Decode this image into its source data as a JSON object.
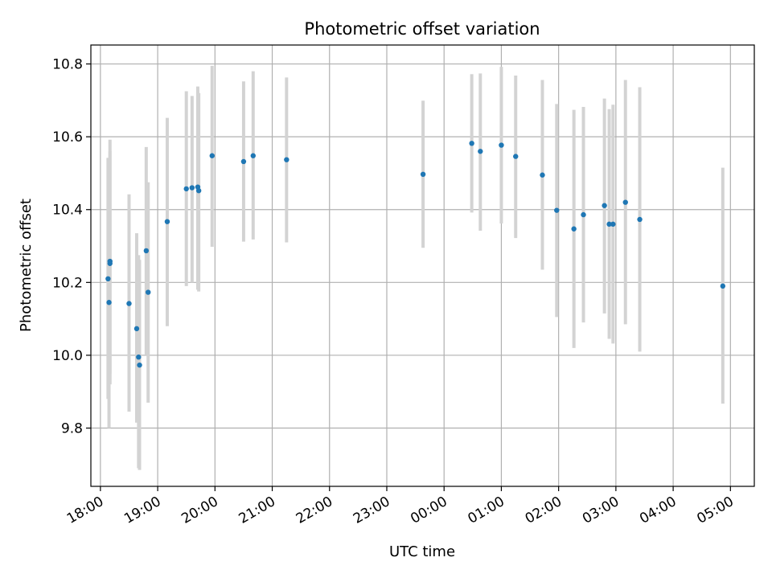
{
  "chart_data": {
    "type": "scatter",
    "title": "Photometric offset variation",
    "xlabel": "UTC time",
    "ylabel": "Photometric offset",
    "x_axis_kind": "time",
    "xlim": [
      "17:50",
      "05:25"
    ],
    "ylim": [
      9.64,
      10.852
    ],
    "grid": true,
    "x_ticks": [
      "18:00",
      "19:00",
      "20:00",
      "21:00",
      "22:00",
      "23:00",
      "00:00",
      "01:00",
      "02:00",
      "03:00",
      "04:00",
      "05:00"
    ],
    "y_ticks": [
      "9.8",
      "10.0",
      "10.2",
      "10.4",
      "10.6",
      "10.8"
    ],
    "colors": {
      "points": "#1f77b4",
      "error_bars": "#d3d3d3",
      "grid": "#b0b0b0"
    },
    "series": [
      {
        "points": [
          {
            "x": "18:08",
            "y": 10.21,
            "yerr_low": 9.88,
            "yerr_high": 10.542
          },
          {
            "x": "18:09",
            "y": 10.145,
            "yerr_low": 9.8,
            "yerr_high": 10.5
          },
          {
            "x": "18:10",
            "y": 10.258,
            "yerr_low": 9.92,
            "yerr_high": 10.592
          },
          {
            "x": "18:10",
            "y": 10.252,
            "yerr_low": 9.95,
            "yerr_high": 10.56
          },
          {
            "x": "18:30",
            "y": 10.142,
            "yerr_low": 9.845,
            "yerr_high": 10.442
          },
          {
            "x": "18:38",
            "y": 10.073,
            "yerr_low": 9.815,
            "yerr_high": 10.335
          },
          {
            "x": "18:40",
            "y": 9.995,
            "yerr_low": 9.69,
            "yerr_high": 10.275
          },
          {
            "x": "18:41",
            "y": 9.973,
            "yerr_low": 9.685,
            "yerr_high": 10.262
          },
          {
            "x": "18:48",
            "y": 10.287,
            "yerr_low": 10.0,
            "yerr_high": 10.572
          },
          {
            "x": "18:50",
            "y": 10.173,
            "yerr_low": 9.87,
            "yerr_high": 10.475
          },
          {
            "x": "19:10",
            "y": 10.367,
            "yerr_low": 10.08,
            "yerr_high": 10.652
          },
          {
            "x": "19:30",
            "y": 10.457,
            "yerr_low": 10.19,
            "yerr_high": 10.725
          },
          {
            "x": "19:36",
            "y": 10.46,
            "yerr_low": 10.2,
            "yerr_high": 10.712
          },
          {
            "x": "19:42",
            "y": 10.462,
            "yerr_low": 10.18,
            "yerr_high": 10.738
          },
          {
            "x": "19:43",
            "y": 10.452,
            "yerr_low": 10.175,
            "yerr_high": 10.72
          },
          {
            "x": "19:57",
            "y": 10.548,
            "yerr_low": 10.298,
            "yerr_high": 10.795
          },
          {
            "x": "20:30",
            "y": 10.532,
            "yerr_low": 10.312,
            "yerr_high": 10.752
          },
          {
            "x": "20:40",
            "y": 10.548,
            "yerr_low": 10.318,
            "yerr_high": 10.78
          },
          {
            "x": "21:15",
            "y": 10.537,
            "yerr_low": 10.31,
            "yerr_high": 10.763
          },
          {
            "x": "23:38",
            "y": 10.497,
            "yerr_low": 10.295,
            "yerr_high": 10.699
          },
          {
            "x": "00:29",
            "y": 10.582,
            "yerr_low": 10.392,
            "yerr_high": 10.772
          },
          {
            "x": "00:38",
            "y": 10.56,
            "yerr_low": 10.342,
            "yerr_high": 10.774
          },
          {
            "x": "01:00",
            "y": 10.577,
            "yerr_low": 10.362,
            "yerr_high": 10.792
          },
          {
            "x": "01:15",
            "y": 10.546,
            "yerr_low": 10.322,
            "yerr_high": 10.768
          },
          {
            "x": "01:43",
            "y": 10.495,
            "yerr_low": 10.235,
            "yerr_high": 10.756
          },
          {
            "x": "01:58",
            "y": 10.398,
            "yerr_low": 10.105,
            "yerr_high": 10.69
          },
          {
            "x": "02:16",
            "y": 10.347,
            "yerr_low": 10.02,
            "yerr_high": 10.674
          },
          {
            "x": "02:26",
            "y": 10.386,
            "yerr_low": 10.09,
            "yerr_high": 10.682
          },
          {
            "x": "02:48",
            "y": 10.411,
            "yerr_low": 10.115,
            "yerr_high": 10.705
          },
          {
            "x": "02:53",
            "y": 10.36,
            "yerr_low": 10.045,
            "yerr_high": 10.676
          },
          {
            "x": "02:57",
            "y": 10.36,
            "yerr_low": 10.032,
            "yerr_high": 10.688
          },
          {
            "x": "03:10",
            "y": 10.42,
            "yerr_low": 10.085,
            "yerr_high": 10.756
          },
          {
            "x": "03:25",
            "y": 10.373,
            "yerr_low": 10.01,
            "yerr_high": 10.736
          },
          {
            "x": "04:52",
            "y": 10.19,
            "yerr_low": 9.867,
            "yerr_high": 10.515
          }
        ]
      }
    ]
  }
}
